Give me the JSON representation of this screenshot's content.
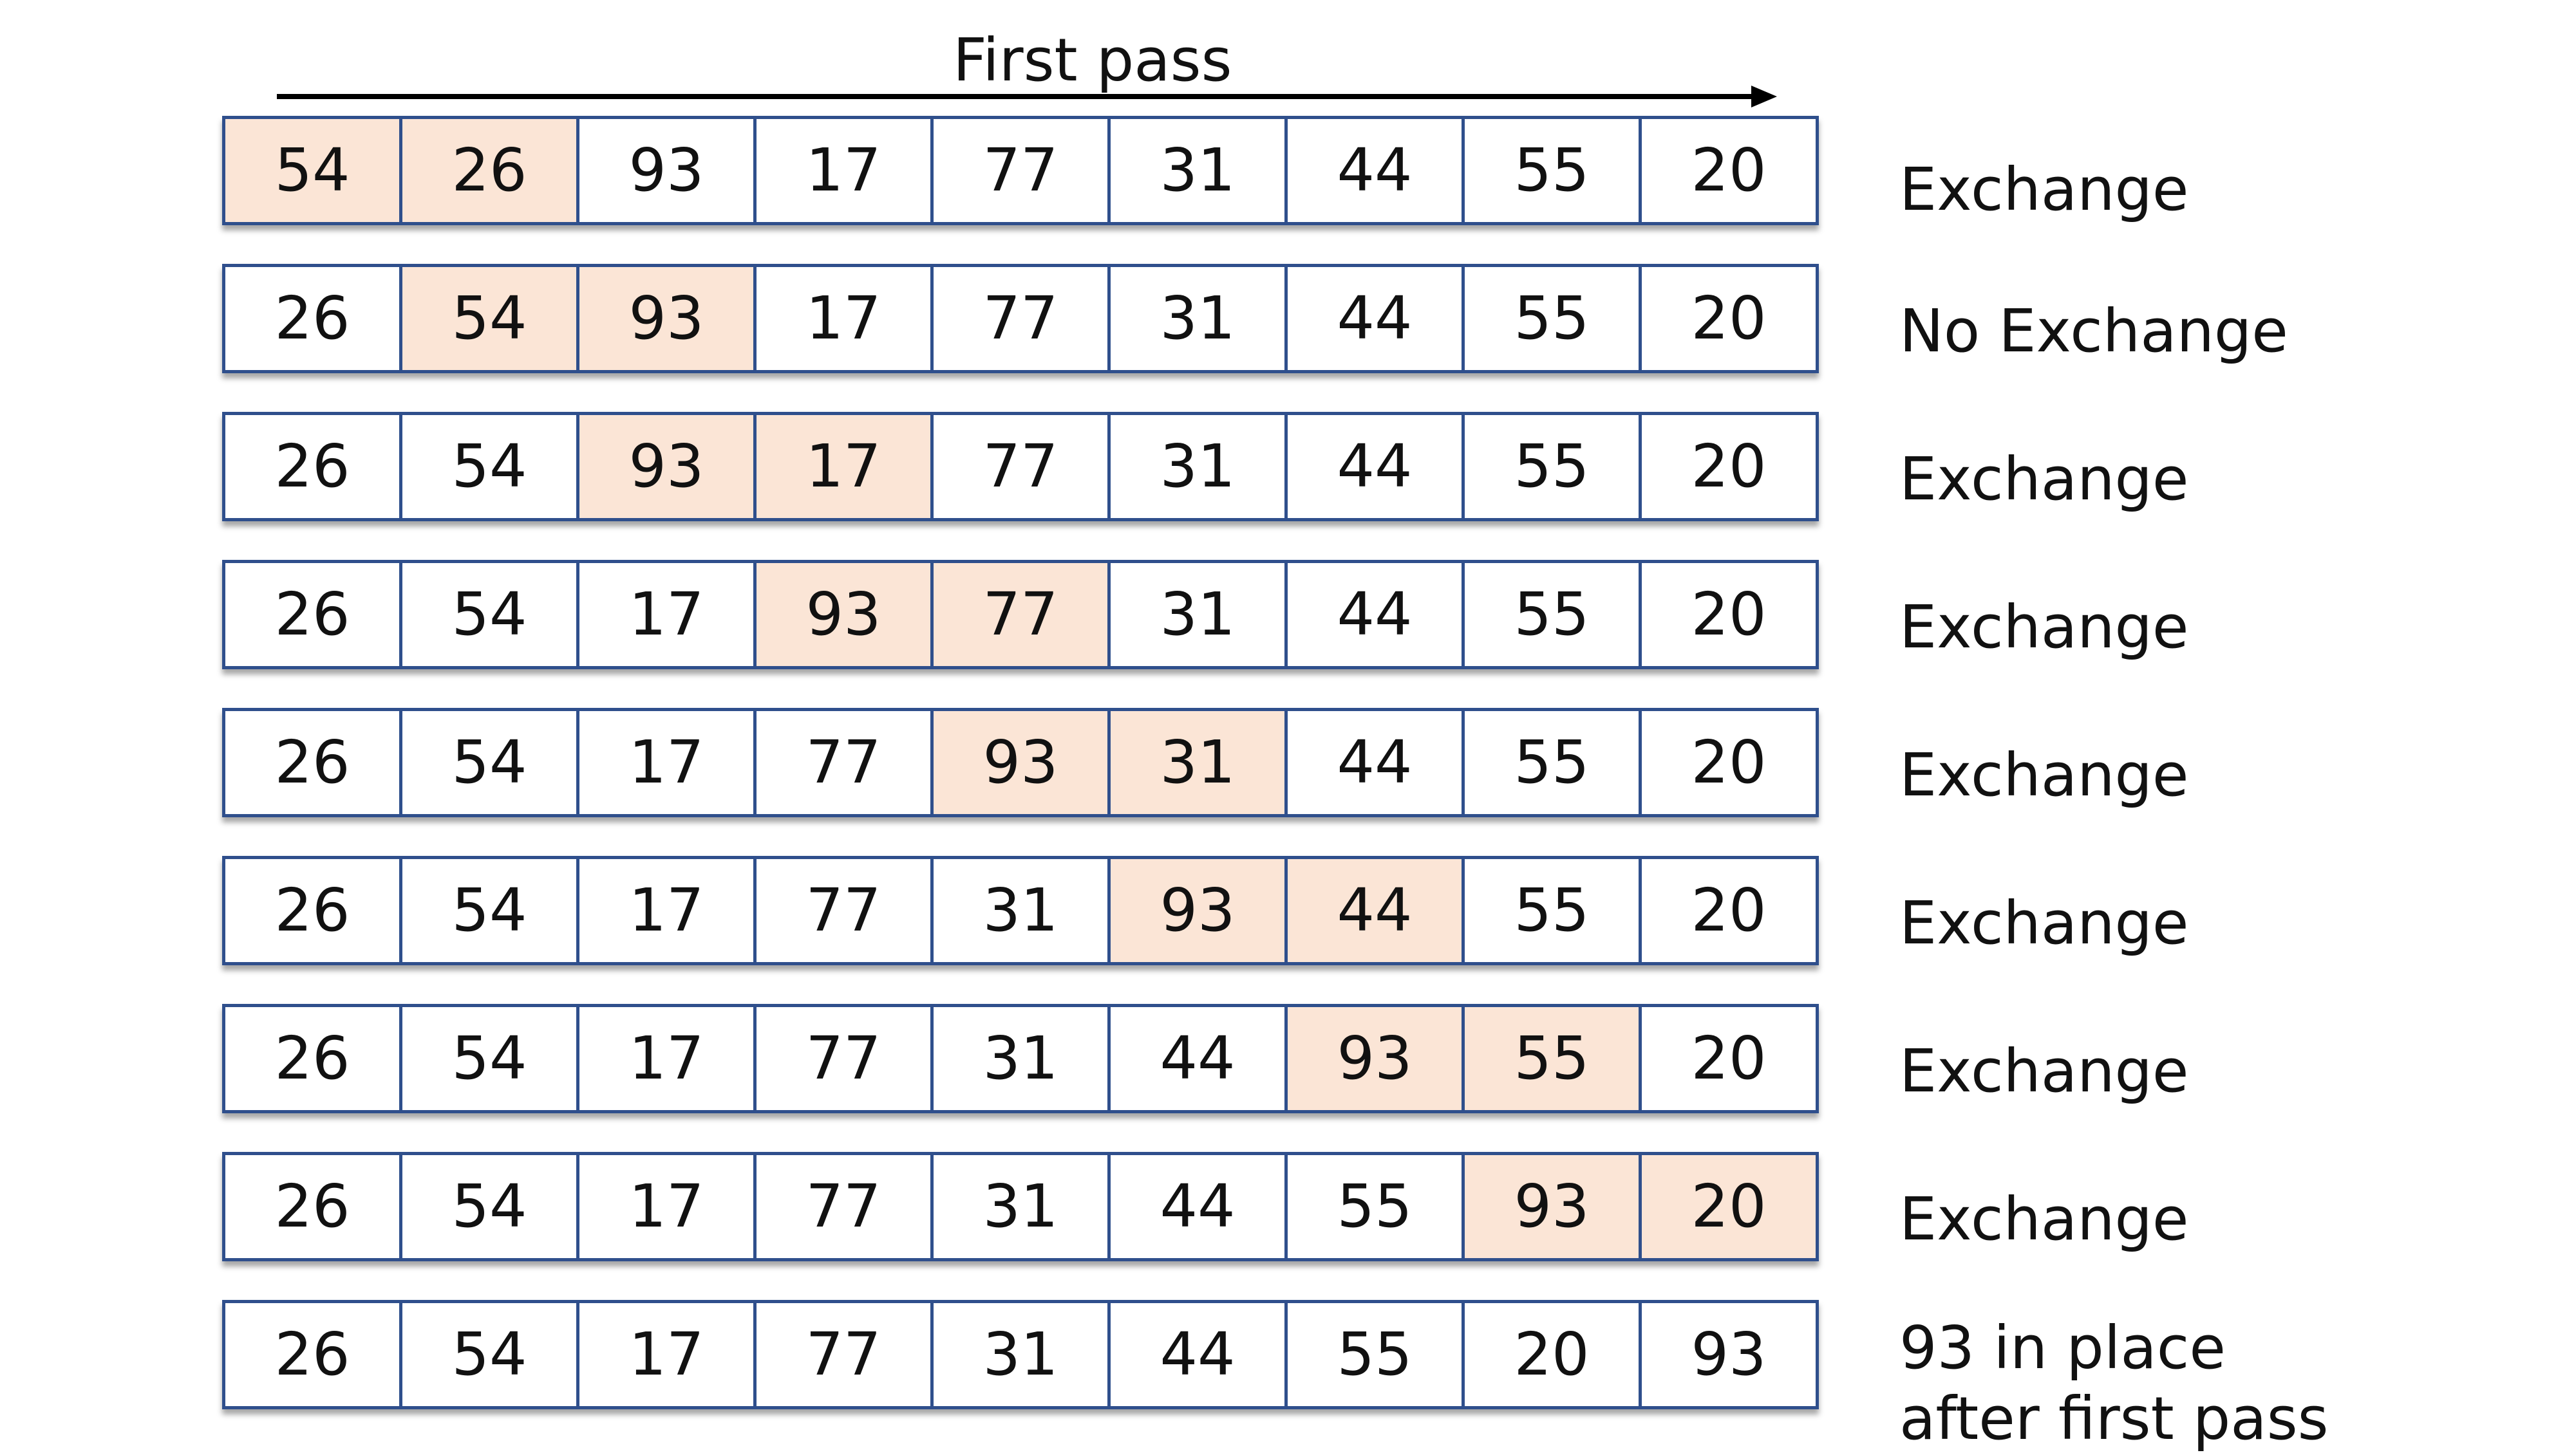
{
  "title": "First pass",
  "colors": {
    "border": "#2f4f8c",
    "highlight": "#fbe5d6",
    "cell": "#ffffff",
    "text": "#111111"
  },
  "rows": [
    {
      "values": [
        "54",
        "26",
        "93",
        "17",
        "77",
        "31",
        "44",
        "55",
        "20"
      ],
      "highlight": [
        0,
        1
      ],
      "label": "Exchange"
    },
    {
      "values": [
        "26",
        "54",
        "93",
        "17",
        "77",
        "31",
        "44",
        "55",
        "20"
      ],
      "highlight": [
        1,
        2
      ],
      "label": "No Exchange"
    },
    {
      "values": [
        "26",
        "54",
        "93",
        "17",
        "77",
        "31",
        "44",
        "55",
        "20"
      ],
      "highlight": [
        2,
        3
      ],
      "label": "Exchange"
    },
    {
      "values": [
        "26",
        "54",
        "17",
        "93",
        "77",
        "31",
        "44",
        "55",
        "20"
      ],
      "highlight": [
        3,
        4
      ],
      "label": "Exchange"
    },
    {
      "values": [
        "26",
        "54",
        "17",
        "77",
        "93",
        "31",
        "44",
        "55",
        "20"
      ],
      "highlight": [
        4,
        5
      ],
      "label": "Exchange"
    },
    {
      "values": [
        "26",
        "54",
        "17",
        "77",
        "31",
        "93",
        "44",
        "55",
        "20"
      ],
      "highlight": [
        5,
        6
      ],
      "label": "Exchange"
    },
    {
      "values": [
        "26",
        "54",
        "17",
        "77",
        "31",
        "44",
        "93",
        "55",
        "20"
      ],
      "highlight": [
        6,
        7
      ],
      "label": "Exchange"
    },
    {
      "values": [
        "26",
        "54",
        "17",
        "77",
        "31",
        "44",
        "55",
        "93",
        "20"
      ],
      "highlight": [
        7,
        8
      ],
      "label": "Exchange"
    },
    {
      "values": [
        "26",
        "54",
        "17",
        "77",
        "31",
        "44",
        "55",
        "20",
        "93"
      ],
      "highlight": [],
      "label": "93 in place",
      "label_line2": "after first pass"
    }
  ]
}
